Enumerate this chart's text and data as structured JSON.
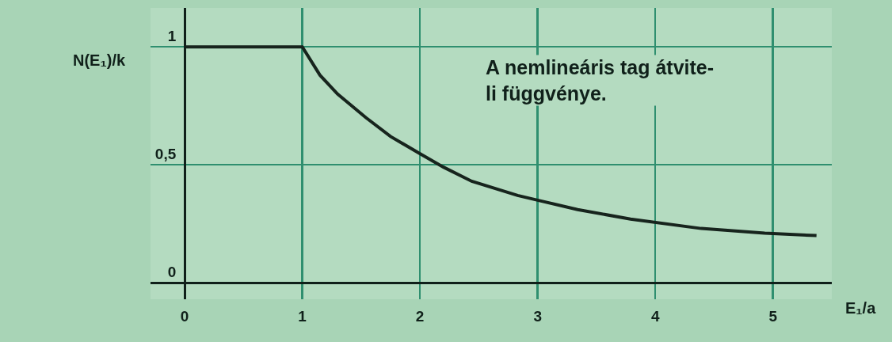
{
  "chart_data": {
    "type": "line",
    "title": "A nemlineáris tag átvite-\nli függvénye.",
    "ylabel": "N(E₁)/k",
    "xlabel": "E₁/a",
    "x": [
      0,
      1,
      1.15,
      1.3,
      1.54,
      1.75,
      1.99,
      2.2,
      2.44,
      2.83,
      3.0,
      3.34,
      3.79,
      4.39,
      4.93,
      5.37
    ],
    "values": [
      1,
      1,
      0.88,
      0.8,
      0.7,
      0.62,
      0.55,
      0.49,
      0.43,
      0.37,
      0.35,
      0.31,
      0.27,
      0.23,
      0.21,
      0.2
    ],
    "color": "#17241d",
    "line_style": "solid",
    "xlim": [
      -0.29,
      5.5
    ],
    "xticks": [
      0,
      1,
      2,
      3,
      4,
      5
    ],
    "ylim": [
      -0.07,
      1.165
    ],
    "yticks": [
      0,
      {
        "value": 0.5,
        "label": "0,5"
      },
      1
    ],
    "grid": true
  }
}
